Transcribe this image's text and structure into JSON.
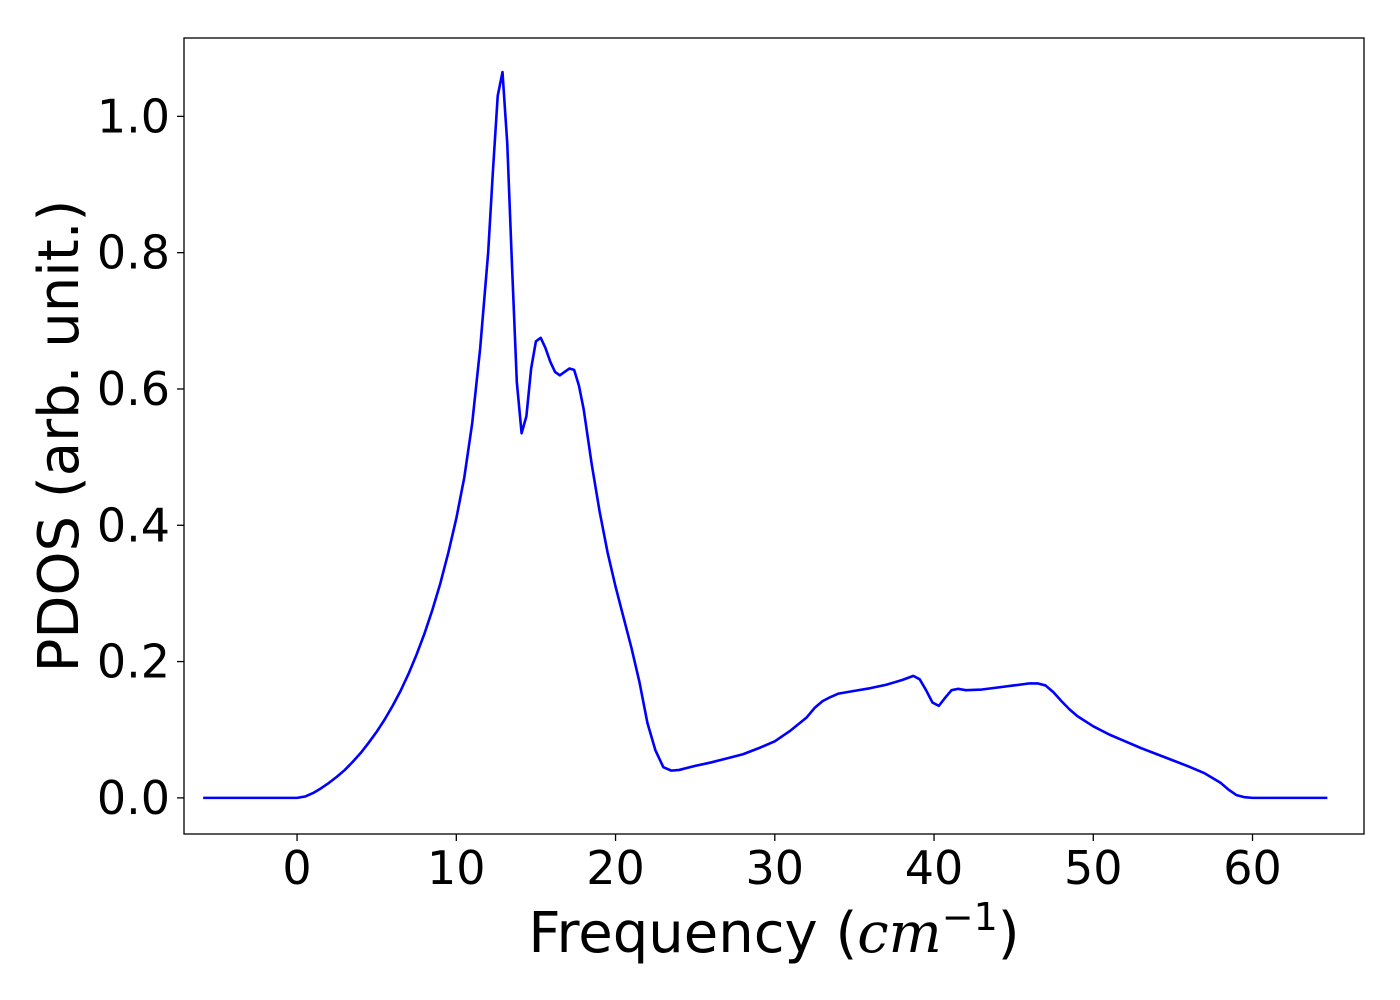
{
  "chart_data": {
    "type": "line",
    "title": "",
    "xlabel": "Frequency (cm⁻¹)",
    "xlabel_parts": {
      "prefix": "Frequency (",
      "math_base": "cm",
      "math_sup": "−1",
      "suffix": ")"
    },
    "ylabel": "PDOS (arb. unit.)",
    "xlim": [
      -7.1,
      67.0
    ],
    "ylim": [
      -0.053,
      1.115
    ],
    "xticks": [
      0,
      10,
      20,
      30,
      40,
      50,
      60
    ],
    "xtick_labels": [
      "0",
      "10",
      "20",
      "30",
      "40",
      "50",
      "60"
    ],
    "yticks": [
      0.0,
      0.2,
      0.4,
      0.6,
      0.8,
      1.0
    ],
    "ytick_labels": [
      "0.0",
      "0.2",
      "0.4",
      "0.6",
      "0.8",
      "1.0"
    ],
    "grid": false,
    "legend": "none",
    "series": [
      {
        "color": "#0000ff",
        "x": [
          -5.9,
          -4.0,
          -2.0,
          0.0,
          0.5,
          1.0,
          1.5,
          2.0,
          2.5,
          3.0,
          3.5,
          4.0,
          4.5,
          5.0,
          5.5,
          6.0,
          6.5,
          7.0,
          7.5,
          8.0,
          8.5,
          9.0,
          9.5,
          10.0,
          10.5,
          11.0,
          11.5,
          12.0,
          12.3,
          12.6,
          12.9,
          13.2,
          13.5,
          13.8,
          14.1,
          14.4,
          14.7,
          15.0,
          15.3,
          15.6,
          15.9,
          16.2,
          16.5,
          16.8,
          17.1,
          17.4,
          17.7,
          18.0,
          18.5,
          19.0,
          19.5,
          20.0,
          20.5,
          21.0,
          21.5,
          22.0,
          22.5,
          23.0,
          23.5,
          24.0,
          24.5,
          25.0,
          26.0,
          27.0,
          28.0,
          29.0,
          30.0,
          31.0,
          32.0,
          32.5,
          33.0,
          33.5,
          34.0,
          35.0,
          36.0,
          37.0,
          38.0,
          38.7,
          39.1,
          39.5,
          39.9,
          40.3,
          40.7,
          41.1,
          41.5,
          42.0,
          43.0,
          44.0,
          45.0,
          46.0,
          46.5,
          47.0,
          47.5,
          48.0,
          48.5,
          49.0,
          50.0,
          51.0,
          52.0,
          53.0,
          54.0,
          55.0,
          56.0,
          57.0,
          58.0,
          58.5,
          59.0,
          59.5,
          60.0,
          61.0,
          62.0,
          63.0,
          64.7
        ],
        "y": [
          0.0,
          0.0,
          0.0,
          0.0,
          0.002,
          0.007,
          0.014,
          0.022,
          0.031,
          0.041,
          0.053,
          0.066,
          0.081,
          0.097,
          0.115,
          0.135,
          0.157,
          0.182,
          0.21,
          0.241,
          0.276,
          0.315,
          0.36,
          0.41,
          0.47,
          0.55,
          0.66,
          0.8,
          0.92,
          1.03,
          1.065,
          0.96,
          0.78,
          0.61,
          0.535,
          0.56,
          0.63,
          0.67,
          0.675,
          0.66,
          0.64,
          0.625,
          0.62,
          0.625,
          0.63,
          0.628,
          0.605,
          0.57,
          0.49,
          0.42,
          0.36,
          0.31,
          0.265,
          0.22,
          0.17,
          0.11,
          0.07,
          0.045,
          0.04,
          0.041,
          0.044,
          0.047,
          0.052,
          0.058,
          0.064,
          0.073,
          0.083,
          0.099,
          0.118,
          0.132,
          0.142,
          0.148,
          0.153,
          0.157,
          0.161,
          0.166,
          0.173,
          0.179,
          0.174,
          0.158,
          0.14,
          0.135,
          0.147,
          0.158,
          0.16,
          0.158,
          0.159,
          0.162,
          0.165,
          0.168,
          0.168,
          0.165,
          0.155,
          0.142,
          0.13,
          0.12,
          0.105,
          0.093,
          0.083,
          0.073,
          0.064,
          0.055,
          0.046,
          0.036,
          0.022,
          0.012,
          0.004,
          0.001,
          0.0,
          0.0,
          0.0,
          0.0,
          0.0
        ]
      }
    ]
  }
}
